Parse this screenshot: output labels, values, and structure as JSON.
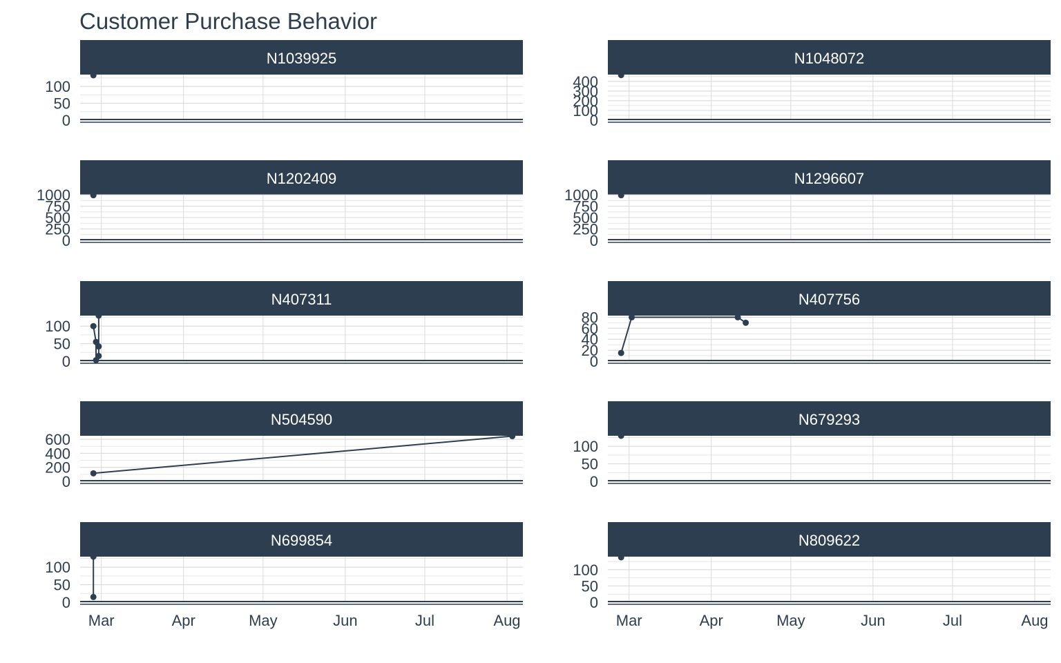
{
  "page": {
    "title": "Customer Purchase Behavior"
  },
  "chart_data": {
    "type": "line",
    "title": "Customer Purchase Behavior",
    "xlabel": "",
    "ylabel": "",
    "layout": "facets in 2 columns, 5 rows; shared x axis; free y axis",
    "x_ticks": [
      "Mar",
      "Apr",
      "May",
      "Jun",
      "Jul",
      "Aug"
    ],
    "x_range": [
      "2024-02-22",
      "2024-08-07"
    ],
    "grid": true,
    "colors": {
      "line": "#2d3e50",
      "strip_background": "#2d3e50",
      "strip_text": "#ffffff",
      "grid": "#d9d9d9"
    },
    "facets": [
      {
        "name": "N1039925",
        "yticks": [
          0,
          50,
          100
        ],
        "ylim": [
          0,
          135
        ],
        "points": [
          {
            "x": "2024-02-27",
            "y": 133
          }
        ]
      },
      {
        "name": "N1048072",
        "yticks": [
          0,
          100,
          200,
          300,
          400
        ],
        "ylim": [
          0,
          470
        ],
        "points": [
          {
            "x": "2024-02-27",
            "y": 465
          }
        ]
      },
      {
        "name": "N1202409",
        "yticks": [
          0,
          250,
          500,
          750,
          1000
        ],
        "ylim": [
          0,
          1000
        ],
        "points": [
          {
            "x": "2024-02-27",
            "y": 990
          }
        ]
      },
      {
        "name": "N1296607",
        "yticks": [
          0,
          250,
          500,
          750,
          1000
        ],
        "ylim": [
          0,
          1000
        ],
        "points": [
          {
            "x": "2024-02-27",
            "y": 990
          }
        ]
      },
      {
        "name": "N407311",
        "yticks": [
          0,
          50,
          100
        ],
        "ylim": [
          0,
          130
        ],
        "points": [
          {
            "x": "2024-02-27",
            "y": 100
          },
          {
            "x": "2024-02-28",
            "y": 55
          },
          {
            "x": "2024-02-28",
            "y": 3
          },
          {
            "x": "2024-02-29",
            "y": 15
          },
          {
            "x": "2024-02-29",
            "y": 42
          },
          {
            "x": "2024-02-29",
            "y": 130
          }
        ]
      },
      {
        "name": "N407756",
        "yticks": [
          0,
          20,
          40,
          60,
          80
        ],
        "ylim": [
          0,
          83
        ],
        "points": [
          {
            "x": "2024-02-27",
            "y": 15
          },
          {
            "x": "2024-03-02",
            "y": 80
          },
          {
            "x": "2024-04-11",
            "y": 80
          },
          {
            "x": "2024-04-14",
            "y": 70
          }
        ]
      },
      {
        "name": "N504590",
        "yticks": [
          0,
          200,
          400,
          600
        ],
        "ylim": [
          0,
          650
        ],
        "points": [
          {
            "x": "2024-02-27",
            "y": 115
          },
          {
            "x": "2024-08-03",
            "y": 645
          }
        ]
      },
      {
        "name": "N679293",
        "yticks": [
          0,
          50,
          100
        ],
        "ylim": [
          0,
          130
        ],
        "points": [
          {
            "x": "2024-02-27",
            "y": 130
          }
        ]
      },
      {
        "name": "N699854",
        "yticks": [
          0,
          50,
          100
        ],
        "ylim": [
          0,
          130
        ],
        "points": [
          {
            "x": "2024-02-27",
            "y": 15
          },
          {
            "x": "2024-02-27",
            "y": 130
          }
        ]
      },
      {
        "name": "N809622",
        "yticks": [
          0,
          50,
          100
        ],
        "ylim": [
          0,
          140
        ],
        "points": [
          {
            "x": "2024-02-27",
            "y": 138
          }
        ]
      }
    ]
  }
}
